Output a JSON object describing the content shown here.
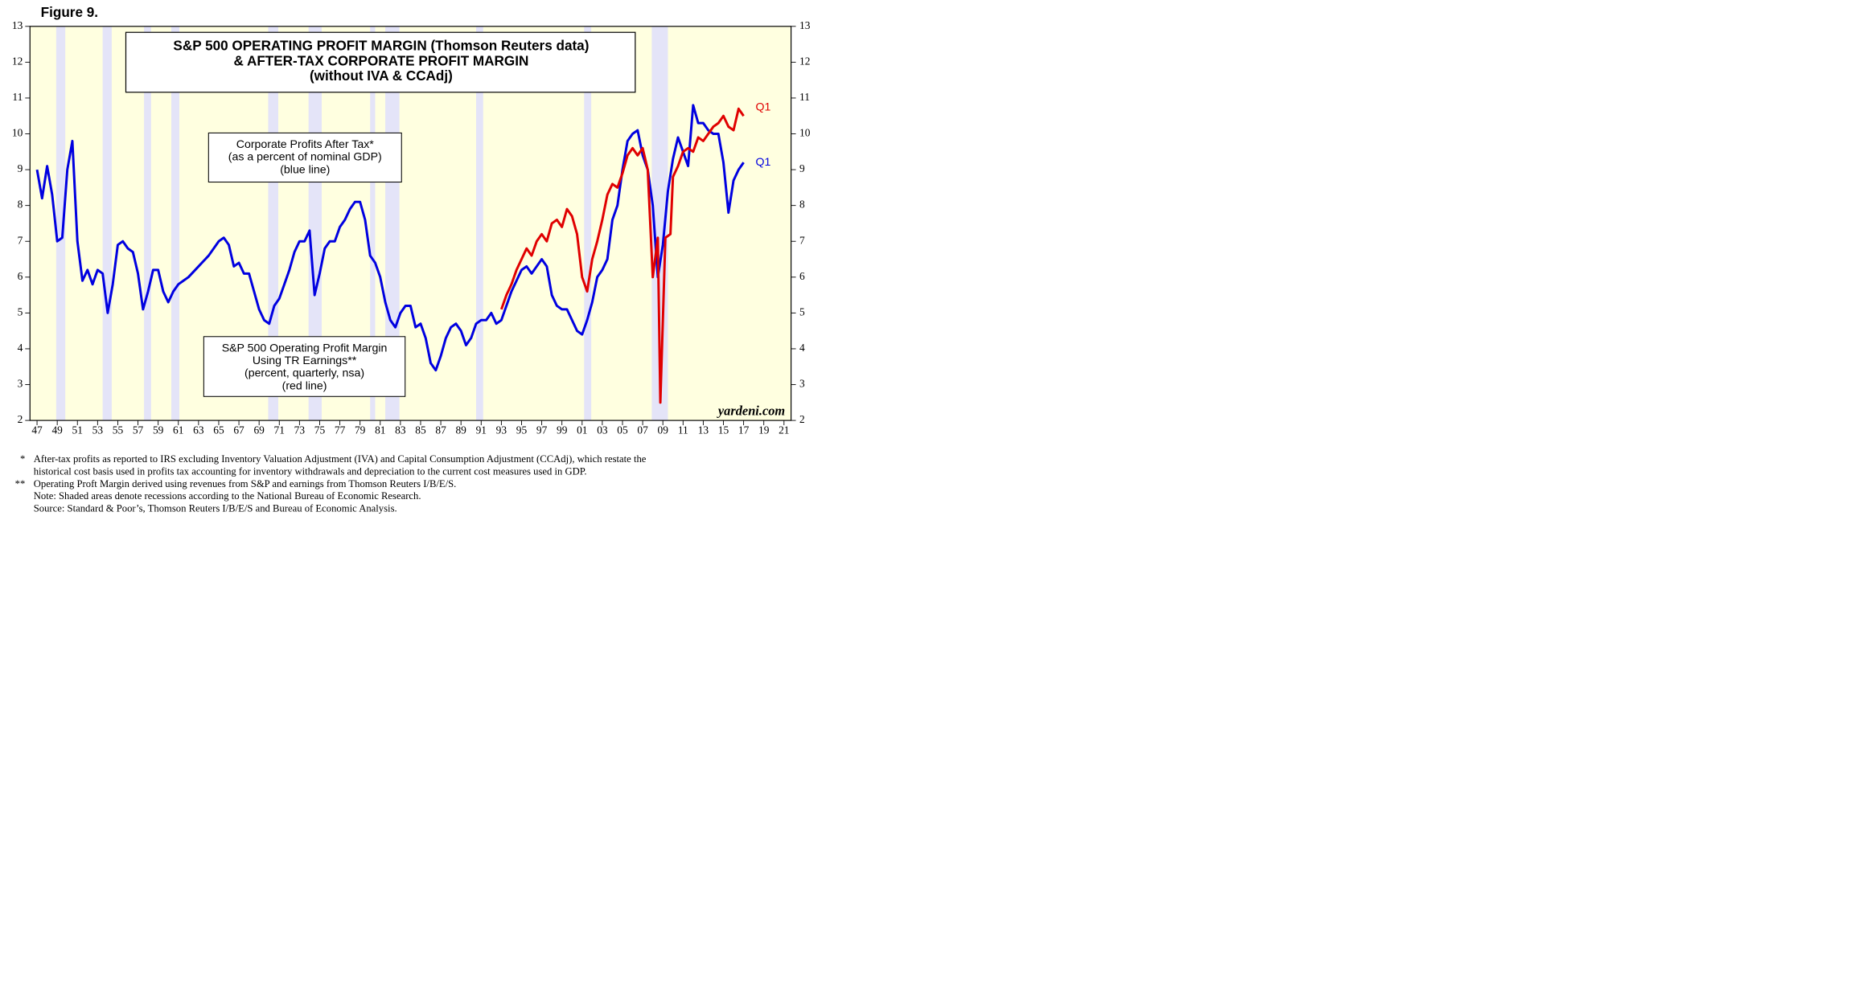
{
  "chart_data": {
    "type": "line",
    "figure_label": "Figure 9.",
    "title": [
      "S&P 500 OPERATING PROFIT MARGIN (Thomson Reuters data)",
      "& AFTER-TAX CORPORATE PROFIT MARGIN",
      "(without IVA & CCAdj)"
    ],
    "annotations": [
      {
        "lines": [
          "Corporate Profits After Tax*",
          "(as a percent of nominal GDP)",
          "(blue line)"
        ]
      },
      {
        "lines": [
          "S&P 500 Operating Profit Margin",
          "Using TR Earnings**",
          "(percent, quarterly, nsa)",
          "(red line)"
        ]
      }
    ],
    "source_tag": "yardeni.com",
    "xlim": [
      1946.3,
      2021.7
    ],
    "xticks": [
      {
        "value": 1947,
        "label": "47"
      },
      {
        "value": 1949,
        "label": "49"
      },
      {
        "value": 1951,
        "label": "51"
      },
      {
        "value": 1953,
        "label": "53"
      },
      {
        "value": 1955,
        "label": "55"
      },
      {
        "value": 1957,
        "label": "57"
      },
      {
        "value": 1959,
        "label": "59"
      },
      {
        "value": 1961,
        "label": "61"
      },
      {
        "value": 1963,
        "label": "63"
      },
      {
        "value": 1965,
        "label": "65"
      },
      {
        "value": 1967,
        "label": "67"
      },
      {
        "value": 1969,
        "label": "69"
      },
      {
        "value": 1971,
        "label": "71"
      },
      {
        "value": 1973,
        "label": "73"
      },
      {
        "value": 1975,
        "label": "75"
      },
      {
        "value": 1977,
        "label": "77"
      },
      {
        "value": 1979,
        "label": "79"
      },
      {
        "value": 1981,
        "label": "81"
      },
      {
        "value": 1983,
        "label": "83"
      },
      {
        "value": 1985,
        "label": "85"
      },
      {
        "value": 1987,
        "label": "87"
      },
      {
        "value": 1989,
        "label": "89"
      },
      {
        "value": 1991,
        "label": "91"
      },
      {
        "value": 1993,
        "label": "93"
      },
      {
        "value": 1995,
        "label": "95"
      },
      {
        "value": 1997,
        "label": "97"
      },
      {
        "value": 1999,
        "label": "99"
      },
      {
        "value": 2001,
        "label": "01"
      },
      {
        "value": 2003,
        "label": "03"
      },
      {
        "value": 2005,
        "label": "05"
      },
      {
        "value": 2007,
        "label": "07"
      },
      {
        "value": 2009,
        "label": "09"
      },
      {
        "value": 2011,
        "label": "11"
      },
      {
        "value": 2013,
        "label": "13"
      },
      {
        "value": 2015,
        "label": "15"
      },
      {
        "value": 2017,
        "label": "17"
      },
      {
        "value": 2019,
        "label": "19"
      },
      {
        "value": 2021,
        "label": "21"
      }
    ],
    "ylim": [
      2,
      13
    ],
    "yticks": [
      2,
      3,
      4,
      5,
      6,
      7,
      8,
      9,
      10,
      11,
      12,
      13
    ],
    "background": "#ffffe0",
    "recession_color": "#e4e4f8",
    "recessions": [
      [
        1948.9,
        1949.8
      ],
      [
        1953.5,
        1954.4
      ],
      [
        1957.6,
        1958.3
      ],
      [
        1960.3,
        1961.1
      ],
      [
        1969.9,
        1970.9
      ],
      [
        1973.9,
        1975.2
      ],
      [
        1980.0,
        1980.5
      ],
      [
        1981.5,
        1982.9
      ],
      [
        1990.5,
        1991.2
      ],
      [
        2001.2,
        2001.9
      ],
      [
        2007.9,
        2009.5
      ]
    ],
    "series": [
      {
        "color": "#0000e0",
        "end_label": "Q1",
        "x": [
          1947,
          1947.5,
          1948,
          1948.5,
          1949,
          1949.5,
          1950,
          1950.5,
          1951,
          1951.5,
          1952,
          1952.5,
          1953,
          1953.5,
          1954,
          1954.5,
          1955,
          1955.5,
          1956,
          1956.5,
          1957,
          1957.5,
          1958,
          1958.5,
          1959,
          1959.5,
          1960,
          1960.5,
          1961,
          1961.5,
          1962,
          1963,
          1964,
          1965,
          1965.5,
          1966,
          1966.5,
          1967,
          1967.5,
          1968,
          1968.5,
          1969,
          1969.5,
          1970,
          1970.5,
          1971,
          1971.5,
          1972,
          1972.5,
          1973,
          1973.5,
          1974,
          1974.5,
          1975,
          1975.5,
          1976,
          1976.5,
          1977,
          1977.5,
          1978,
          1978.5,
          1979,
          1979.5,
          1980,
          1980.5,
          1981,
          1981.5,
          1982,
          1982.5,
          1983,
          1983.5,
          1984,
          1984.5,
          1985,
          1985.5,
          1986,
          1986.5,
          1987,
          1987.5,
          1988,
          1988.5,
          1989,
          1989.5,
          1990,
          1990.5,
          1991,
          1991.5,
          1992,
          1992.5,
          1993,
          1993.5,
          1994,
          1994.5,
          1995,
          1995.5,
          1996,
          1996.5,
          1997,
          1997.5,
          1998,
          1998.5,
          1999,
          1999.5,
          2000,
          2000.5,
          2001,
          2001.5,
          2002,
          2002.5,
          2003,
          2003.5,
          2004,
          2004.5,
          2005,
          2005.5,
          2006,
          2006.5,
          2007,
          2007.5,
          2008,
          2008.5,
          2009,
          2009.5,
          2010,
          2010.5,
          2011,
          2011.5,
          2012,
          2012.5,
          2013,
          2013.5,
          2014,
          2014.5,
          2015,
          2015.5,
          2016,
          2016.5,
          2017
        ],
        "values": [
          9.0,
          8.2,
          9.1,
          8.3,
          7.0,
          7.1,
          9.0,
          9.8,
          7.0,
          5.9,
          6.2,
          5.8,
          6.2,
          6.1,
          5.0,
          5.8,
          6.9,
          7.0,
          6.8,
          6.7,
          6.1,
          5.1,
          5.6,
          6.2,
          6.2,
          5.6,
          5.3,
          5.6,
          5.8,
          5.9,
          6.0,
          6.3,
          6.6,
          7.0,
          7.1,
          6.9,
          6.3,
          6.4,
          6.1,
          6.1,
          5.6,
          5.1,
          4.8,
          4.7,
          5.2,
          5.4,
          5.8,
          6.2,
          6.7,
          7.0,
          7.0,
          7.3,
          5.5,
          6.1,
          6.8,
          7.0,
          7.0,
          7.4,
          7.6,
          7.9,
          8.1,
          8.1,
          7.6,
          6.6,
          6.4,
          6.0,
          5.3,
          4.8,
          4.6,
          5.0,
          5.2,
          5.2,
          4.6,
          4.7,
          4.3,
          3.6,
          3.4,
          3.8,
          4.3,
          4.6,
          4.7,
          4.5,
          4.1,
          4.3,
          4.7,
          4.8,
          4.8,
          5.0,
          4.7,
          4.8,
          5.2,
          5.6,
          5.9,
          6.2,
          6.3,
          6.1,
          6.3,
          6.5,
          6.3,
          5.5,
          5.2,
          5.1,
          5.1,
          4.8,
          4.5,
          4.4,
          4.8,
          5.3,
          6.0,
          6.2,
          6.5,
          7.6,
          8.0,
          9.0,
          9.8,
          10.0,
          10.1,
          9.4,
          9.0,
          8.0,
          6.0,
          6.9,
          8.4,
          9.3,
          9.9,
          9.5,
          9.1,
          10.8,
          10.3,
          10.3,
          10.1,
          10.0,
          10.0,
          9.2,
          7.8,
          8.7,
          9.0,
          9.2
        ]
      },
      {
        "color": "#e00000",
        "end_label": "Q1",
        "x": [
          1993,
          1993.5,
          1994,
          1994.5,
          1995,
          1995.5,
          1996,
          1996.5,
          1997,
          1997.5,
          1998,
          1998.5,
          1999,
          1999.5,
          2000,
          2000.5,
          2001,
          2001.5,
          2002,
          2002.5,
          2003,
          2003.5,
          2004,
          2004.5,
          2005,
          2005.5,
          2006,
          2006.5,
          2007,
          2007.5,
          2008,
          2008.5,
          2008.75,
          2009.25,
          2009.75,
          2010,
          2010.5,
          2011,
          2011.5,
          2012,
          2012.5,
          2013,
          2013.5,
          2014,
          2014.5,
          2015,
          2015.5,
          2016,
          2016.5,
          2017
        ],
        "values": [
          5.1,
          5.5,
          5.8,
          6.2,
          6.5,
          6.8,
          6.6,
          7.0,
          7.2,
          7.0,
          7.5,
          7.6,
          7.4,
          7.9,
          7.7,
          7.2,
          6.0,
          5.6,
          6.5,
          7.0,
          7.6,
          8.3,
          8.6,
          8.5,
          8.9,
          9.4,
          9.6,
          9.4,
          9.6,
          9.0,
          6.0,
          7.1,
          2.5,
          7.1,
          7.2,
          8.8,
          9.1,
          9.5,
          9.6,
          9.5,
          9.9,
          9.8,
          10.0,
          10.2,
          10.3,
          10.5,
          10.2,
          10.1,
          10.7,
          10.5
        ]
      }
    ],
    "footnotes": [
      {
        "marker": "*",
        "lines": [
          "After-tax profits as reported to IRS excluding Inventory Valuation Adjustment (IVA) and Capital Consumption Adjustment (CCAdj), which restate the",
          "historical cost basis used in profits tax accounting for inventory withdrawals and depreciation to the current cost measures used in GDP."
        ]
      },
      {
        "marker": "**",
        "lines": [
          "Operating Proft Margin derived using revenues from S&P and earnings from Thomson Reuters I/B/E/S."
        ]
      },
      {
        "lines": [
          "Note: Shaded areas denote recessions according to the National Bureau of Economic Research."
        ]
      },
      {
        "lines": [
          "Source: Standard & Poor’s, Thomson Reuters I/B/E/S and Bureau of Economic Analysis."
        ]
      }
    ]
  }
}
